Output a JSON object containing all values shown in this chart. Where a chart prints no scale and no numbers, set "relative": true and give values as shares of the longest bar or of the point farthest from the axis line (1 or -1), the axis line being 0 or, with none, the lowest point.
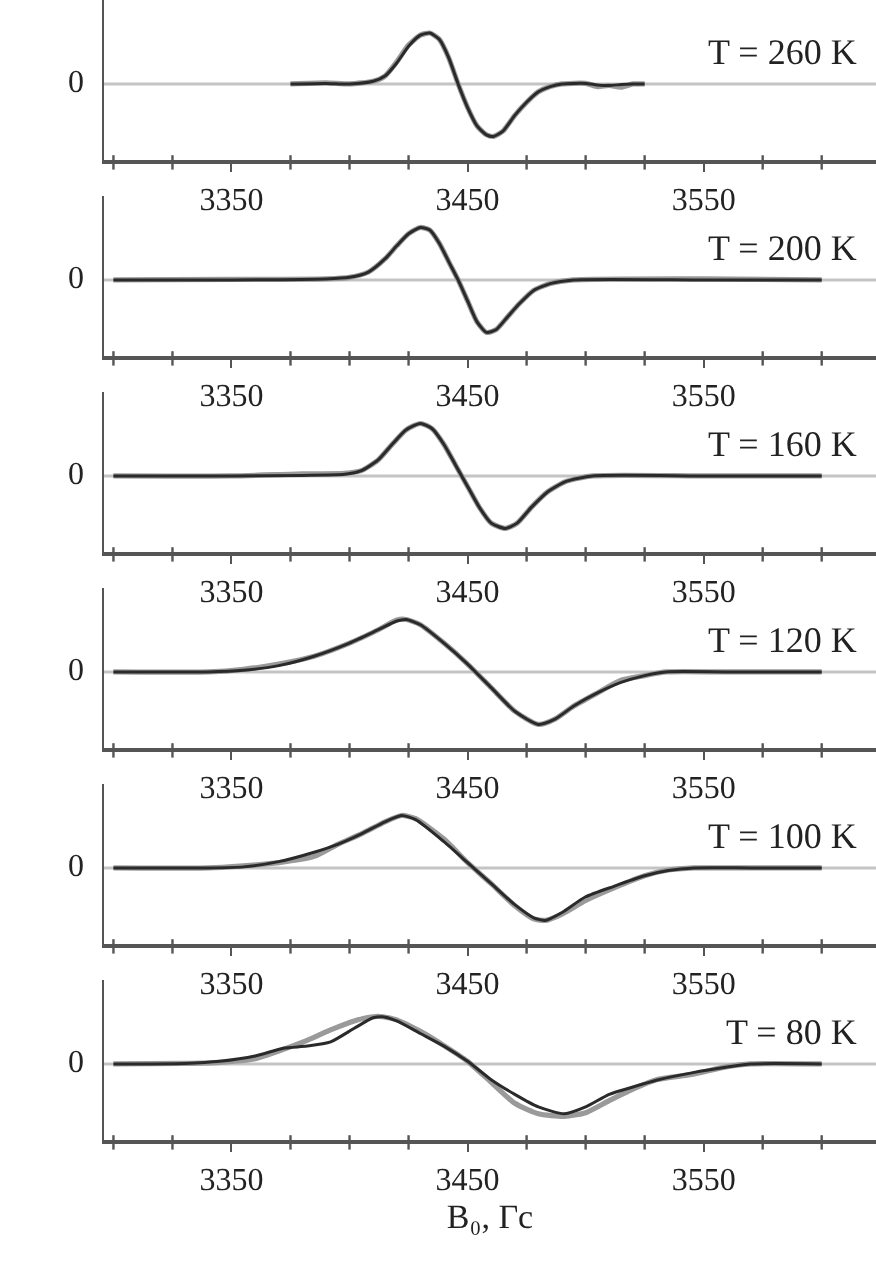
{
  "chart_data": [
    {
      "type": "line",
      "title": "T = 260 K",
      "relative": true,
      "xlim": [
        3296,
        3623
      ],
      "xticks": [
        {
          "value": 3300,
          "label": null
        },
        {
          "value": 3325,
          "label": null
        },
        3350,
        {
          "value": 3375,
          "label": null
        },
        {
          "value": 3400,
          "label": null
        },
        {
          "value": 3425,
          "label": null
        },
        3450,
        {
          "value": 3475,
          "label": null
        },
        {
          "value": 3500,
          "label": null
        },
        {
          "value": 3525,
          "label": null
        },
        3550,
        {
          "value": 3575,
          "label": null
        },
        {
          "value": 3600,
          "label": null
        }
      ],
      "ref_lines": [
        {
          "axis": "y",
          "value": 0,
          "label": "0",
          "color": "#c4c4c4"
        }
      ],
      "grid": false,
      "x": [
        3375,
        3390,
        3400,
        3410,
        3415,
        3420,
        3425,
        3430,
        3434,
        3438,
        3442,
        3446,
        3450,
        3454,
        3458,
        3461,
        3465,
        3470,
        3475,
        3480,
        3485,
        3490,
        3500,
        3505,
        3510,
        3515,
        3520,
        3525
      ],
      "series": [
        {
          "color": "#9a9a9a",
          "values": [
            0,
            0.02,
            0,
            0.05,
            0.15,
            0.42,
            0.74,
            0.93,
            0.97,
            0.85,
            0.5,
            0,
            -0.45,
            -0.8,
            -0.97,
            -1,
            -0.9,
            -0.6,
            -0.35,
            -0.15,
            -0.05,
            0,
            0.01,
            -0.05,
            -0.03,
            -0.06,
            0,
            0
          ]
        },
        {
          "color": "#2a2a2a",
          "values": [
            0,
            0.01,
            0,
            0.05,
            0.15,
            0.4,
            0.72,
            0.93,
            0.97,
            0.85,
            0.5,
            0,
            -0.45,
            -0.8,
            -0.97,
            -1,
            -0.9,
            -0.6,
            -0.35,
            -0.15,
            -0.05,
            0,
            0.01,
            -0.02,
            -0.03,
            -0.01,
            0,
            0
          ]
        }
      ]
    },
    {
      "type": "line",
      "title": "T = 200 K",
      "relative": true,
      "xlim": [
        3296,
        3623
      ],
      "xticks": [
        {
          "value": 3300,
          "label": null
        },
        {
          "value": 3325,
          "label": null
        },
        3350,
        {
          "value": 3375,
          "label": null
        },
        {
          "value": 3400,
          "label": null
        },
        {
          "value": 3425,
          "label": null
        },
        3450,
        {
          "value": 3475,
          "label": null
        },
        {
          "value": 3500,
          "label": null
        },
        {
          "value": 3525,
          "label": null
        },
        3550,
        {
          "value": 3575,
          "label": null
        },
        {
          "value": 3600,
          "label": null
        }
      ],
      "ref_lines": [
        {
          "axis": "y",
          "value": 0,
          "label": "0",
          "color": "#c4c4c4"
        }
      ],
      "grid": false,
      "x": [
        3300,
        3350,
        3390,
        3400,
        3408,
        3415,
        3420,
        3425,
        3430,
        3434,
        3438,
        3442,
        3446,
        3450,
        3454,
        3458,
        3462,
        3467,
        3472,
        3478,
        3485,
        3495,
        3550,
        3600
      ],
      "series": [
        {
          "color": "#9a9a9a",
          "values": [
            0,
            0.01,
            0.02,
            0.05,
            0.15,
            0.4,
            0.65,
            0.88,
            1,
            0.95,
            0.7,
            0.35,
            0,
            -0.4,
            -0.8,
            -1,
            -0.95,
            -0.7,
            -0.45,
            -0.2,
            -0.07,
            0,
            0.02,
            0
          ]
        },
        {
          "color": "#2a2a2a",
          "values": [
            0,
            0,
            0.02,
            0.05,
            0.15,
            0.4,
            0.65,
            0.88,
            1,
            0.95,
            0.7,
            0.35,
            0,
            -0.4,
            -0.8,
            -1,
            -0.95,
            -0.7,
            -0.45,
            -0.2,
            -0.07,
            0,
            0,
            0
          ]
        }
      ]
    },
    {
      "type": "line",
      "title": "T = 160 K",
      "relative": true,
      "xlim": [
        3296,
        3623
      ],
      "xticks": [
        {
          "value": 3300,
          "label": null
        },
        {
          "value": 3325,
          "label": null
        },
        3350,
        {
          "value": 3375,
          "label": null
        },
        {
          "value": 3400,
          "label": null
        },
        {
          "value": 3425,
          "label": null
        },
        3450,
        {
          "value": 3475,
          "label": null
        },
        {
          "value": 3500,
          "label": null
        },
        {
          "value": 3525,
          "label": null
        },
        3550,
        {
          "value": 3575,
          "label": null
        },
        {
          "value": 3600,
          "label": null
        }
      ],
      "ref_lines": [
        {
          "axis": "y",
          "value": 0,
          "label": "0",
          "color": "#c4c4c4"
        }
      ],
      "grid": false,
      "x": [
        3300,
        3350,
        3380,
        3398,
        3405,
        3412,
        3418,
        3424,
        3430,
        3435,
        3440,
        3445,
        3450,
        3455,
        3460,
        3466,
        3471,
        3477,
        3484,
        3492,
        3503,
        3550,
        3600
      ],
      "series": [
        {
          "color": "#9a9a9a",
          "values": [
            0,
            0,
            0.04,
            0.05,
            0.1,
            0.3,
            0.6,
            0.88,
            1,
            0.9,
            0.6,
            0.2,
            -0.2,
            -0.6,
            -0.9,
            -1,
            -0.9,
            -0.6,
            -0.3,
            -0.1,
            0,
            0,
            0
          ]
        },
        {
          "color": "#2a2a2a",
          "values": [
            0,
            0,
            0.01,
            0.03,
            0.1,
            0.3,
            0.6,
            0.88,
            1,
            0.9,
            0.6,
            0.2,
            -0.2,
            -0.6,
            -0.9,
            -1,
            -0.9,
            -0.6,
            -0.3,
            -0.1,
            0,
            0,
            0
          ]
        }
      ]
    },
    {
      "type": "line",
      "title": "T = 120 K",
      "relative": true,
      "xlim": [
        3296,
        3623
      ],
      "xticks": [
        {
          "value": 3300,
          "label": null
        },
        {
          "value": 3325,
          "label": null
        },
        3350,
        {
          "value": 3375,
          "label": null
        },
        {
          "value": 3400,
          "label": null
        },
        {
          "value": 3425,
          "label": null
        },
        3450,
        {
          "value": 3475,
          "label": null
        },
        {
          "value": 3500,
          "label": null
        },
        {
          "value": 3525,
          "label": null
        },
        3550,
        {
          "value": 3575,
          "label": null
        },
        {
          "value": 3600,
          "label": null
        }
      ],
      "ref_lines": [
        {
          "axis": "y",
          "value": 0,
          "label": "0",
          "color": "#c4c4c4"
        }
      ],
      "grid": false,
      "x": [
        3300,
        3340,
        3355,
        3370,
        3385,
        3400,
        3412,
        3420,
        3424,
        3430,
        3440,
        3450,
        3460,
        3470,
        3480,
        3487,
        3495,
        3505,
        3515,
        3525,
        3534,
        3560,
        3600
      ],
      "series": [
        {
          "color": "#9a9a9a",
          "values": [
            0,
            0,
            0.05,
            0.15,
            0.3,
            0.55,
            0.8,
            0.99,
            1,
            0.9,
            0.55,
            0.15,
            -0.3,
            -0.75,
            -1,
            -0.9,
            -0.65,
            -0.4,
            -0.16,
            -0.07,
            0,
            0,
            0
          ]
        },
        {
          "color": "#2a2a2a",
          "values": [
            0,
            0,
            0.03,
            0.12,
            0.3,
            0.55,
            0.8,
            0.97,
            1,
            0.9,
            0.55,
            0.15,
            -0.3,
            -0.75,
            -1,
            -0.9,
            -0.65,
            -0.4,
            -0.2,
            -0.07,
            0,
            0,
            0
          ]
        }
      ]
    },
    {
      "type": "line",
      "title": "T = 100 K",
      "relative": true,
      "xlim": [
        3296,
        3623
      ],
      "xticks": [
        {
          "value": 3300,
          "label": null
        },
        {
          "value": 3325,
          "label": null
        },
        3350,
        {
          "value": 3375,
          "label": null
        },
        {
          "value": 3400,
          "label": null
        },
        {
          "value": 3425,
          "label": null
        },
        3450,
        {
          "value": 3475,
          "label": null
        },
        {
          "value": 3500,
          "label": null
        },
        {
          "value": 3525,
          "label": null
        },
        3550,
        {
          "value": 3575,
          "label": null
        },
        {
          "value": 3600,
          "label": null
        }
      ],
      "ref_lines": [
        {
          "axis": "y",
          "value": 0,
          "label": "0",
          "color": "#c4c4c4"
        }
      ],
      "grid": false,
      "x": [
        3300,
        3340,
        3355,
        3370,
        3385,
        3395,
        3405,
        3415,
        3422,
        3428,
        3440,
        3450,
        3460,
        3470,
        3478,
        3483,
        3490,
        3500,
        3512,
        3525,
        3535,
        3546,
        3570,
        3600
      ],
      "series": [
        {
          "color": "#9a9a9a",
          "values": [
            0,
            0,
            0.04,
            0.1,
            0.22,
            0.45,
            0.65,
            0.88,
            1,
            0.94,
            0.55,
            0.1,
            -0.3,
            -0.72,
            -0.97,
            -1,
            -0.88,
            -0.62,
            -0.38,
            -0.15,
            -0.04,
            0,
            0,
            0
          ]
        },
        {
          "color": "#2a2a2a",
          "values": [
            0,
            0,
            0.02,
            0.12,
            0.3,
            0.45,
            0.65,
            0.88,
            1,
            0.92,
            0.5,
            0.1,
            -0.3,
            -0.7,
            -0.95,
            -1,
            -0.85,
            -0.55,
            -0.35,
            -0.15,
            -0.05,
            0,
            0,
            0
          ]
        }
      ]
    },
    {
      "type": "line",
      "title": "T = 80 K",
      "xlabel": "B₀, Гс",
      "relative": true,
      "xlim": [
        3296,
        3623
      ],
      "xticks": [
        {
          "value": 3300,
          "label": null
        },
        {
          "value": 3325,
          "label": null
        },
        3350,
        {
          "value": 3375,
          "label": null
        },
        {
          "value": 3400,
          "label": null
        },
        {
          "value": 3425,
          "label": null
        },
        3450,
        {
          "value": 3475,
          "label": null
        },
        {
          "value": 3500,
          "label": null
        },
        {
          "value": 3525,
          "label": null
        },
        3550,
        {
          "value": 3575,
          "label": null
        },
        {
          "value": 3600,
          "label": null
        }
      ],
      "ref_lines": [
        {
          "axis": "y",
          "value": 0,
          "label": "0",
          "color": "#c4c4c4"
        }
      ],
      "grid": false,
      "x": [
        3300,
        3330,
        3345,
        3360,
        3372,
        3382,
        3392,
        3402,
        3410,
        3414,
        3420,
        3430,
        3440,
        3450,
        3460,
        3470,
        3480,
        3491,
        3500,
        3510,
        3520,
        3530,
        3545,
        3560,
        3570,
        3600
      ],
      "series": [
        {
          "color": "#9a9a9a",
          "values": [
            0,
            0.01,
            0.03,
            0.1,
            0.28,
            0.45,
            0.65,
            0.82,
            0.9,
            0.9,
            0.84,
            0.62,
            0.35,
            0.05,
            -0.35,
            -0.75,
            -0.95,
            -1,
            -0.93,
            -0.7,
            -0.48,
            -0.3,
            -0.2,
            -0.05,
            0,
            0
          ]
        },
        {
          "color": "#2a2a2a",
          "values": [
            0,
            0.01,
            0.05,
            0.15,
            0.3,
            0.34,
            0.42,
            0.68,
            0.88,
            0.9,
            0.82,
            0.58,
            0.34,
            0.05,
            -0.3,
            -0.58,
            -0.82,
            -0.95,
            -0.82,
            -0.58,
            -0.44,
            -0.31,
            -0.17,
            -0.06,
            0,
            0
          ]
        }
      ]
    }
  ]
}
